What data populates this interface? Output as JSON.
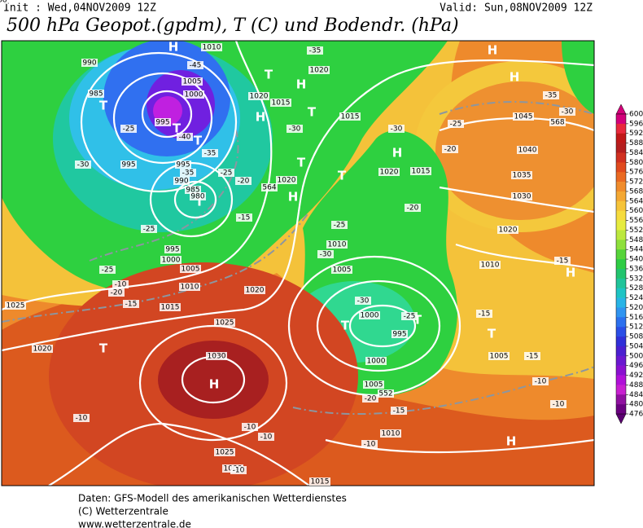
{
  "header": {
    "init": "Init : Wed,04NOV2009 12Z",
    "valid": "Valid: Sun,08NOV2009 12Z",
    "title": "500 hPa Geopot.(gpdm), T (C) und Bodendr. (hPa)"
  },
  "map": {
    "labels": [
      "H",
      "H",
      "H",
      "H",
      "H",
      "H",
      "H",
      "H",
      "H",
      "H",
      "T",
      "T",
      "T",
      "T",
      "T",
      "T",
      "T",
      "T",
      "T",
      "T",
      "T",
      "T",
      "990",
      "985",
      "995",
      "995",
      "995",
      "990",
      "985",
      "980",
      "1005",
      "1000",
      "1010",
      "1020",
      "1020",
      "1015",
      "1015",
      "1020",
      "1020",
      "1015",
      "1045",
      "1040",
      "1035",
      "1030",
      "1020",
      "1010",
      "1010",
      "1005",
      "1000",
      "995",
      "1000",
      "1005",
      "1010",
      "1005",
      "995",
      "1000",
      "1005",
      "1010",
      "1015",
      "1020",
      "1025",
      "1030",
      "1025",
      "1020",
      "1025",
      "1015",
      "1000",
      "-35",
      "-45",
      "-25",
      "-40",
      "-35",
      "-30",
      "-35",
      "-25",
      "-20",
      "-25",
      "-15",
      "-25",
      "-20",
      "-15",
      "-30",
      "-30",
      "-25",
      "-20",
      "-35",
      "-30",
      "-20",
      "-25",
      "-30",
      "-15",
      "-15",
      "-30",
      "-25",
      "-15",
      "-10",
      "-10",
      "-15",
      "-20",
      "-10",
      "-10",
      "-10",
      "-10",
      "-10",
      "-10",
      "564",
      "552",
      "568",
      "568"
    ]
  },
  "colorbar": {
    "labels": [
      600,
      596,
      592,
      588,
      584,
      580,
      576,
      572,
      568,
      564,
      560,
      556,
      552,
      548,
      544,
      540,
      536,
      532,
      528,
      524,
      520,
      516,
      512,
      508,
      504,
      500,
      496,
      492,
      488,
      484,
      480,
      476
    ],
    "colors": [
      "#d2007a",
      "#e8283c",
      "#c01818",
      "#b41e1e",
      "#d03020",
      "#e04a1e",
      "#ea6a22",
      "#f08c2c",
      "#f4a834",
      "#f6c43a",
      "#f6dc3e",
      "#e6ec40",
      "#bce83e",
      "#8ee03c",
      "#56d43a",
      "#2ecc44",
      "#22c46e",
      "#20c49a",
      "#1ec4c4",
      "#28b4e6",
      "#3094f0",
      "#2c70ee",
      "#2a4ee6",
      "#3030d8",
      "#4a20d0",
      "#6a18d0",
      "#8a10d0",
      "#b010d8",
      "#c820d0",
      "#9010a0",
      "#6a0080"
    ],
    "over_color": "#d2007a",
    "under_color": "#5a0070"
  },
  "footer": {
    "line1": "Daten: GFS-Modell des amerikanischen Wetterdienstes",
    "line2": "(C) Wetterzentrale",
    "line3": "www.wetterzentrale.de"
  }
}
